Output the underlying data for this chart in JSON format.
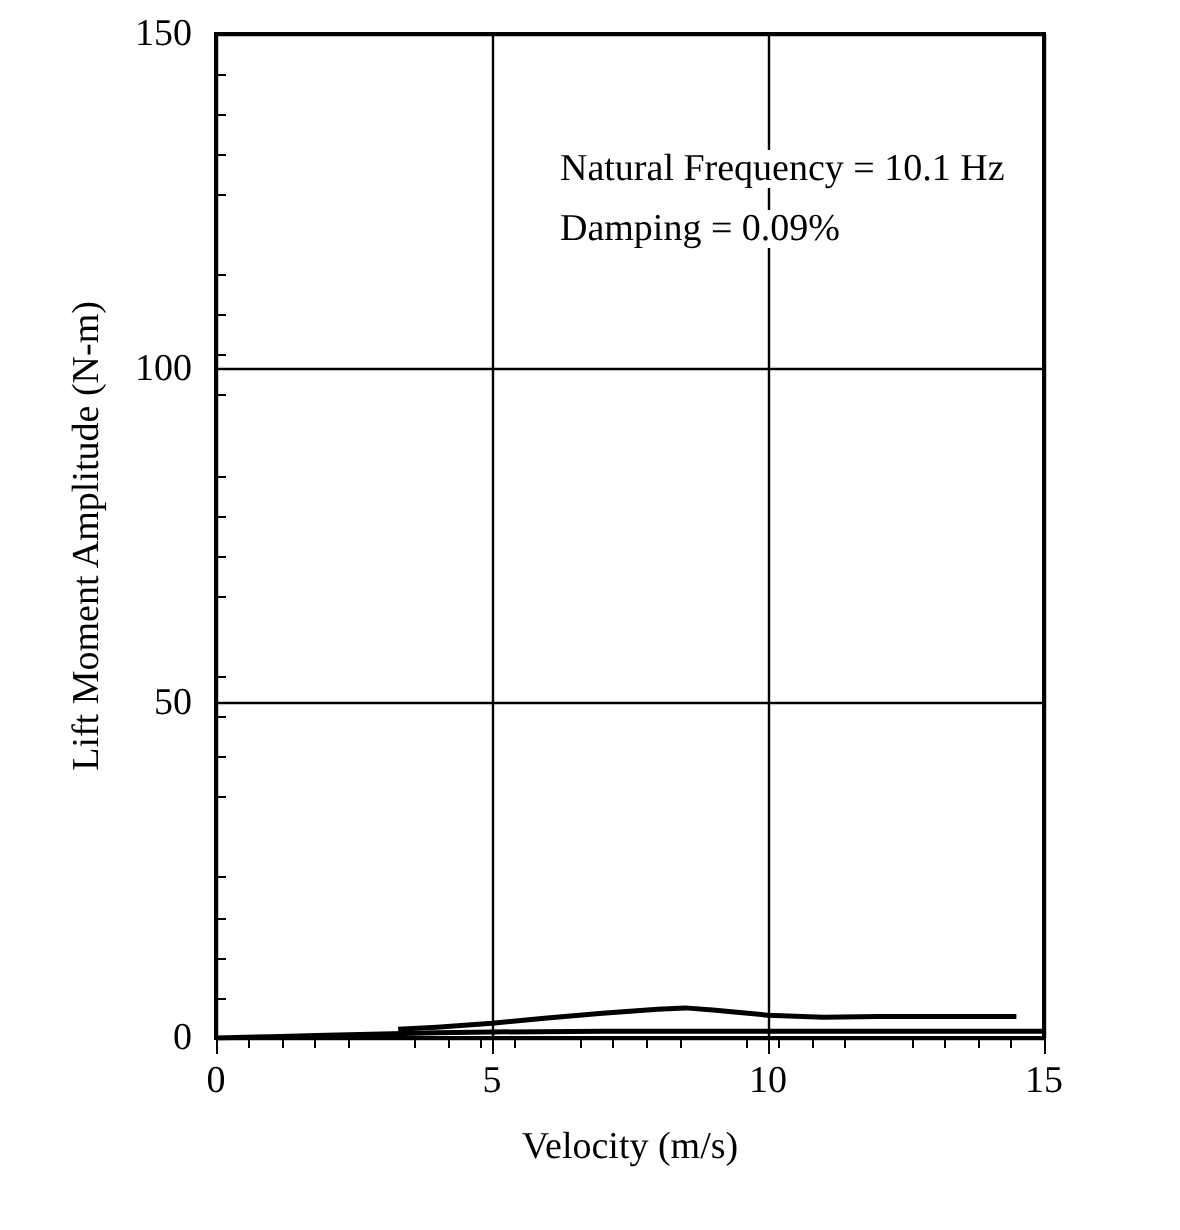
{
  "chart_data": {
    "type": "line",
    "xlabel": "Velocity (m/s)",
    "ylabel": "Lift Moment Amplitude (N-m)",
    "annotations": [
      "Natural Frequency = 10.1 Hz",
      "Damping = 0.09%"
    ],
    "xlim": [
      0,
      15
    ],
    "xticks": [
      0,
      5,
      10,
      15
    ],
    "ylim": [
      0,
      150
    ],
    "yticks": [
      0,
      50,
      100,
      150
    ],
    "grid": true,
    "marker": "none",
    "line_style": "solid",
    "series": [
      {
        "color": "#000000",
        "x": [
          0,
          1,
          2,
          3,
          4,
          5,
          7,
          10,
          12,
          15
        ],
        "values": [
          0,
          0.2,
          0.4,
          0.6,
          0.8,
          0.9,
          1,
          1,
          1,
          1
        ]
      },
      {
        "color": "#000000",
        "x": [
          3.3,
          4,
          5,
          6,
          7,
          8,
          8.5,
          9,
          10,
          11,
          12,
          14.5
        ],
        "values": [
          1.3,
          1.6,
          2.2,
          3,
          3.7,
          4.3,
          4.5,
          4.2,
          3.4,
          3.1,
          3.2,
          3.2
        ]
      }
    ]
  }
}
